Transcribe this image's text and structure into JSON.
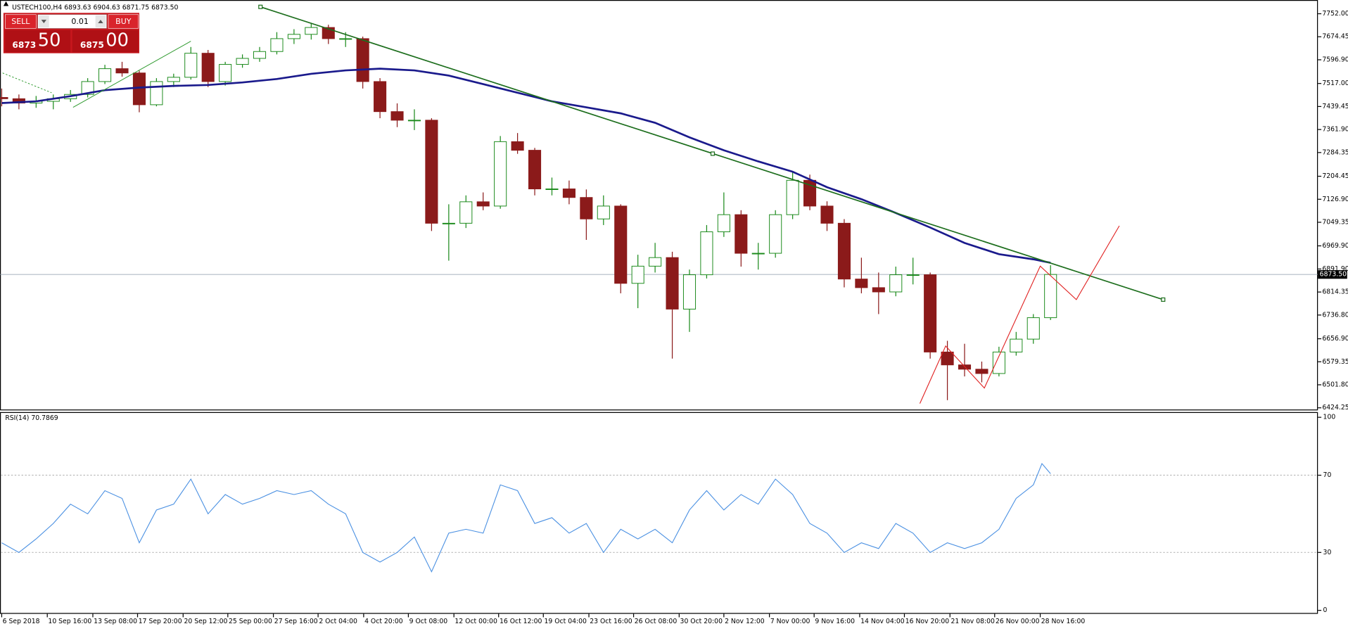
{
  "chart_data": {
    "type": "candlestick",
    "title": "USTECH100,H4  6893.63 6904.63 6871.75 6873.50",
    "up_color": "#1b8a1b",
    "down_color": "#8b1a1a",
    "xlim": [
      0,
      383
    ],
    "x": [
      0,
      5,
      10,
      15,
      20,
      25,
      30,
      35,
      40,
      45,
      50,
      55,
      60,
      65,
      70,
      75,
      80,
      85,
      90,
      95,
      100,
      105,
      110,
      115,
      120,
      125,
      130,
      135,
      140,
      145,
      150,
      155,
      160,
      165,
      170,
      175,
      180,
      185,
      190,
      195,
      200,
      205,
      210,
      215,
      220,
      225,
      230,
      235,
      240,
      245,
      250,
      255,
      260,
      265,
      270,
      275,
      280,
      285,
      290,
      295,
      300,
      305
    ],
    "open": [
      7470,
      7465.6,
      7451.1,
      7456.9,
      7465.6,
      7480.1,
      7523.5,
      7566.9,
      7552.4,
      7445.4,
      7523.5,
      7537.9,
      7618.9,
      7523.5,
      7581.3,
      7601.6,
      7624.7,
      7668.1,
      7682.6,
      7705.7,
      7668.1,
      7668.1,
      7523.5,
      7422.2,
      7393.3,
      7393.3,
      7046.1,
      7046.1,
      7118.4,
      7104.0,
      7321.0,
      7292.0,
      7161.8,
      7161.8,
      7132.9,
      7060.6,
      7104.0,
      6843.6,
      6901.5,
      6930.4,
      6756.8,
      6872.5,
      7017.2,
      7075.0,
      6944.9,
      6944.9,
      7075.0,
      7190.8,
      7104.0,
      7046.1,
      6858.1,
      6829.1,
      6814.7,
      6872.5,
      6872.5,
      6612.2,
      6568.8,
      6554.3,
      6539.8,
      6612.2,
      6655.6,
      6727.9
    ],
    "high": [
      7500,
      7480,
      7475,
      7480,
      7495,
      7535,
      7580,
      7590,
      7560,
      7535,
      7550,
      7640,
      7630,
      7590,
      7615,
      7640,
      7690,
      7700,
      7720,
      7715,
      7690,
      7675,
      7535,
      7450,
      7430,
      7400,
      7110,
      7140,
      7150,
      7340,
      7350,
      7300,
      7200,
      7190,
      7160,
      7140,
      7110,
      6940,
      6980,
      6950,
      6890,
      7040,
      7150,
      7090,
      6980,
      7090,
      7220,
      7210,
      7120,
      7060,
      6930,
      6880,
      6900,
      6930,
      6880,
      6650,
      6640,
      6580,
      6630,
      6680,
      6740,
      6904.63
    ],
    "low": [
      7440,
      7430,
      7435,
      7430,
      7455,
      7470,
      7515,
      7540,
      7420,
      7440,
      7505,
      7530,
      7505,
      7510,
      7570,
      7590,
      7615,
      7650,
      7665,
      7650,
      7640,
      7500,
      7400,
      7370,
      7360,
      7020,
      6920,
      7030,
      7090,
      7095,
      7280,
      7140,
      7140,
      7110,
      6990,
      7040,
      6810,
      6760,
      6880,
      6590,
      6680,
      6860,
      7000,
      6900,
      6890,
      6930,
      7060,
      7090,
      7020,
      6830,
      6810,
      6740,
      6800,
      6840,
      6590,
      6450,
      6530,
      6510,
      6530,
      6600,
      6640,
      6720
    ],
    "close": [
      7465.6,
      7451.1,
      7456.9,
      7465.6,
      7480.1,
      7523.5,
      7566.9,
      7552.4,
      7445.4,
      7523.5,
      7537.9,
      7618.9,
      7523.5,
      7581.3,
      7601.6,
      7624.7,
      7668.1,
      7682.6,
      7705.7,
      7668.1,
      7668.1,
      7523.5,
      7422.2,
      7393.3,
      7393.3,
      7046.1,
      7046.1,
      7118.4,
      7104.0,
      7321.0,
      7292.0,
      7161.8,
      7161.8,
      7132.9,
      7060.6,
      7104.0,
      6843.6,
      6901.5,
      6930.4,
      6756.8,
      6872.5,
      7017.2,
      7075.0,
      6944.9,
      6944.9,
      7075.0,
      7190.8,
      7104.0,
      7046.1,
      6858.1,
      6829.1,
      6814.7,
      6872.5,
      6872.5,
      6612.2,
      6568.8,
      6554.3,
      6539.8,
      6612.2,
      6655.6,
      6727.9,
      6873.5
    ],
    "ma": {
      "color": "#1a1a8c",
      "x": [
        0,
        10,
        20,
        30,
        40,
        50,
        60,
        70,
        80,
        90,
        100,
        110,
        120,
        130,
        140,
        150,
        160,
        170,
        180,
        190,
        200,
        210,
        220,
        230,
        240,
        250,
        260,
        270,
        280,
        290,
        300,
        305
      ],
      "values": [
        7451.1,
        7456.9,
        7474.3,
        7494.5,
        7503.2,
        7508.9,
        7511.9,
        7520.6,
        7532.1,
        7549.5,
        7561.1,
        7566.9,
        7561.1,
        7543.7,
        7514.8,
        7485.9,
        7456.9,
        7436.7,
        7416.4,
        7384.6,
        7335.4,
        7292.0,
        7254.4,
        7219.7,
        7167.6,
        7127.1,
        7080.8,
        7031.7,
        6979.6,
        6942.0,
        6924.6,
        6913.0
      ]
    },
    "ylim": [
      6418.5,
      7798.3
    ],
    "yticks": [
      {
        "value": 7752,
        "label": "7752.00"
      },
      7674.45,
      {
        "value": 7596.9,
        "label": "7596.90"
      },
      {
        "value": 7517,
        "label": "7517.00"
      },
      7439.45,
      {
        "value": 7361.9,
        "label": "7361.90"
      },
      7284.35,
      7204.45,
      {
        "value": 7126.9,
        "label": "7126.90"
      },
      7049.35,
      {
        "value": 6969.9,
        "label": "6969.90"
      },
      {
        "value": 6891.9,
        "label": "6891.90"
      },
      6814.35,
      {
        "value": 6736.8,
        "label": "6736.80"
      },
      {
        "value": 6656.9,
        "label": "6656.90"
      },
      6579.35,
      {
        "value": 6501.8,
        "label": "6501.80"
      },
      6424.25
    ],
    "current_price": {
      "value": 6873.5,
      "label": "6873.50"
    },
    "xticks": [
      {
        "value": 0,
        "label": "6 Sep 2018"
      },
      {
        "value": 13.25,
        "label": "10 Sep 16:00"
      },
      {
        "value": 26.5,
        "label": "13 Sep 08:00"
      },
      {
        "value": 39.5,
        "label": "17 Sep 20:00"
      },
      {
        "value": 52.75,
        "label": "20 Sep 12:00"
      },
      {
        "value": 65.75,
        "label": "25 Sep 00:00"
      },
      {
        "value": 79,
        "label": "27 Sep 16:00"
      },
      {
        "value": 92,
        "label": "2 Oct 04:00"
      },
      {
        "value": 105.25,
        "label": "4 Oct 20:00"
      },
      {
        "value": 118.25,
        "label": "9 Oct 08:00"
      },
      {
        "value": 131.5,
        "label": "12 Oct 00:00"
      },
      {
        "value": 144.5,
        "label": "16 Oct 12:00"
      },
      {
        "value": 157.5,
        "label": "19 Oct 04:00"
      },
      {
        "value": 170.75,
        "label": "23 Oct 16:00"
      },
      {
        "value": 183.75,
        "label": "26 Oct 08:00"
      },
      {
        "value": 197,
        "label": "30 Oct 20:00"
      },
      {
        "value": 210,
        "label": "2 Nov 12:00"
      },
      {
        "value": 223.25,
        "label": "7 Nov 00:00"
      },
      {
        "value": 236.25,
        "label": "9 Nov 16:00"
      },
      {
        "value": 249.5,
        "label": "14 Nov 04:00"
      },
      {
        "value": 262.5,
        "label": "16 Nov 20:00"
      },
      {
        "value": 275.75,
        "label": "21 Nov 08:00"
      },
      {
        "value": 288.75,
        "label": "26 Nov 00:00"
      },
      {
        "value": 302,
        "label": "28 Nov 16:00"
      }
    ],
    "indicator": {
      "type": "line",
      "title": "RSI(14) 70.7869",
      "color": "#4a90e2",
      "x": [
        0,
        5,
        10,
        15,
        20,
        25,
        30,
        35,
        40,
        45,
        50,
        55,
        60,
        65,
        70,
        75,
        80,
        85,
        90,
        95,
        100,
        105,
        110,
        115,
        120,
        125,
        130,
        135,
        140,
        145,
        150,
        155,
        160,
        165,
        170,
        175,
        180,
        185,
        190,
        195,
        200,
        205,
        210,
        215,
        220,
        225,
        230,
        235,
        240,
        245,
        250,
        255,
        260,
        265,
        270,
        275,
        280,
        285,
        290,
        295,
        300,
        302.5,
        305
      ],
      "values": [
        35,
        30,
        37,
        45,
        55,
        50,
        62,
        58,
        35,
        52,
        55,
        68,
        50,
        60,
        55,
        58,
        62,
        60,
        62,
        55,
        50,
        30,
        25,
        30,
        38,
        20,
        40,
        42,
        40,
        65,
        62,
        45,
        48,
        40,
        45,
        30,
        42,
        37,
        42,
        35,
        52,
        62,
        52,
        60,
        55,
        68,
        60,
        45,
        40,
        30,
        35,
        32,
        45,
        40,
        30,
        35,
        32,
        35,
        42,
        58,
        65,
        76,
        70.79
      ],
      "ylim": [
        -1.8,
        102.7
      ],
      "yticks": [
        100,
        70,
        30,
        0
      ],
      "levels": [
        70,
        30
      ]
    }
  },
  "trade_panel": {
    "sell_label": "SELL",
    "lot": "0.01",
    "buy_label": "BUY",
    "sell_price_main": "6873",
    "sell_price_pips": "50",
    "buy_price_main": "6875",
    "buy_price_pips": "00"
  }
}
